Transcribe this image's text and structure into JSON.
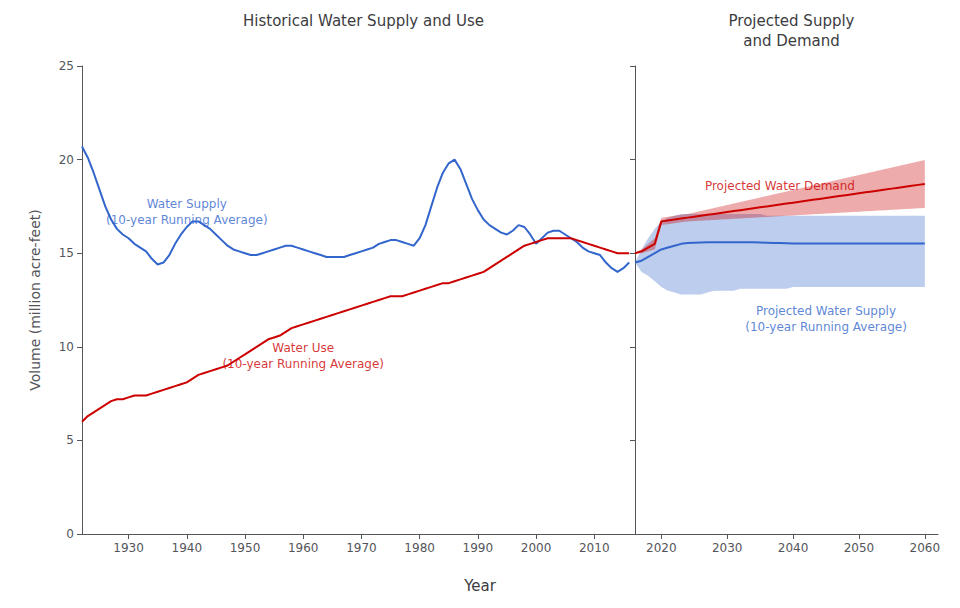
{
  "chart_data": [
    {
      "type": "line",
      "title": "Historical Water Supply and Use",
      "ylabel": "Volume (million acre-feet)",
      "xlabel": "Year",
      "x": [
        1922,
        1923,
        1924,
        1925,
        1926,
        1927,
        1928,
        1929,
        1930,
        1931,
        1932,
        1933,
        1934,
        1935,
        1936,
        1937,
        1938,
        1939,
        1940,
        1941,
        1942,
        1943,
        1944,
        1945,
        1946,
        1947,
        1948,
        1949,
        1950,
        1951,
        1952,
        1953,
        1954,
        1955,
        1956,
        1957,
        1958,
        1959,
        1960,
        1961,
        1962,
        1963,
        1964,
        1965,
        1966,
        1967,
        1968,
        1969,
        1970,
        1971,
        1972,
        1973,
        1974,
        1975,
        1976,
        1977,
        1978,
        1979,
        1980,
        1981,
        1982,
        1983,
        1984,
        1985,
        1986,
        1987,
        1988,
        1989,
        1990,
        1991,
        1992,
        1993,
        1994,
        1995,
        1996,
        1997,
        1998,
        1999,
        2000,
        2001,
        2002,
        2003,
        2004,
        2005,
        2006,
        2007,
        2008,
        2009,
        2010,
        2011,
        2012,
        2013,
        2014,
        2015,
        2016
      ],
      "series": [
        {
          "color": "#3366CC",
          "values": [
            20.7,
            20.1,
            19.3,
            18.4,
            17.5,
            16.8,
            16.3,
            16.0,
            15.8,
            15.5,
            15.3,
            15.1,
            14.7,
            14.4,
            14.5,
            14.9,
            15.5,
            16.0,
            16.4,
            16.7,
            16.7,
            16.5,
            16.3,
            16.0,
            15.7,
            15.4,
            15.2,
            15.1,
            15.0,
            14.9,
            14.9,
            15.0,
            15.1,
            15.2,
            15.3,
            15.4,
            15.4,
            15.3,
            15.2,
            15.1,
            15.0,
            14.9,
            14.8,
            14.8,
            14.8,
            14.8,
            14.9,
            15.0,
            15.1,
            15.2,
            15.3,
            15.5,
            15.6,
            15.7,
            15.7,
            15.6,
            15.5,
            15.4,
            15.8,
            16.5,
            17.5,
            18.5,
            19.3,
            19.8,
            20.0,
            19.5,
            18.7,
            17.9,
            17.3,
            16.8,
            16.5,
            16.3,
            16.1,
            16.0,
            16.2,
            16.5,
            16.4,
            16.0,
            15.5,
            15.8,
            16.1,
            16.2,
            16.2,
            16.0,
            15.8,
            15.6,
            15.3,
            15.1,
            15.0,
            14.9,
            14.5,
            14.2,
            14.0,
            14.2,
            14.5
          ]
        },
        {
          "color": "#CC0000",
          "values": [
            6.0,
            6.3,
            6.5,
            6.7,
            6.9,
            7.1,
            7.2,
            7.2,
            7.3,
            7.4,
            7.4,
            7.4,
            7.5,
            7.6,
            7.7,
            7.8,
            7.9,
            8.0,
            8.1,
            8.3,
            8.5,
            8.6,
            8.7,
            8.8,
            8.9,
            9.0,
            9.2,
            9.4,
            9.6,
            9.8,
            10.0,
            10.2,
            10.4,
            10.5,
            10.6,
            10.8,
            11.0,
            11.1,
            11.2,
            11.3,
            11.4,
            11.5,
            11.6,
            11.7,
            11.8,
            11.9,
            12.0,
            12.1,
            12.2,
            12.3,
            12.4,
            12.5,
            12.6,
            12.7,
            12.7,
            12.7,
            12.8,
            12.9,
            13.0,
            13.1,
            13.2,
            13.3,
            13.4,
            13.4,
            13.5,
            13.6,
            13.7,
            13.8,
            13.9,
            14.0,
            14.2,
            14.4,
            14.6,
            14.8,
            15.0,
            15.2,
            15.4,
            15.5,
            15.6,
            15.7,
            15.8,
            15.8,
            15.8,
            15.8,
            15.8,
            15.7,
            15.6,
            15.5,
            15.4,
            15.3,
            15.2,
            15.1,
            15.0,
            15.0,
            15.0
          ]
        }
      ],
      "annotations": [
        {
          "text": "Water Supply\n(10-year Running Average)",
          "x": 1940,
          "y": 17.2,
          "color": "#3366CC"
        },
        {
          "text": "Water Use\n(10-year Running Average)",
          "x": 1960,
          "y": 9.5,
          "color": "#CC0000"
        }
      ],
      "xlim": [
        1922,
        2017
      ],
      "xticks": [
        1930,
        1940,
        1950,
        1960,
        1970,
        1980,
        1990,
        2000,
        2010
      ],
      "ylim": [
        0,
        25
      ],
      "yticks": [
        0,
        5,
        10,
        15,
        20,
        25
      ],
      "grid": false
    },
    {
      "type": "line",
      "title": "Projected Supply\nand Demand",
      "x": [
        2016,
        2017,
        2018,
        2019,
        2020,
        2021,
        2022,
        2023,
        2024,
        2025,
        2026,
        2027,
        2028,
        2029,
        2030,
        2031,
        2032,
        2033,
        2034,
        2035,
        2036,
        2037,
        2038,
        2039,
        2040,
        2041,
        2042,
        2043,
        2044,
        2045,
        2046,
        2047,
        2048,
        2049,
        2050,
        2051,
        2052,
        2053,
        2054,
        2055,
        2056,
        2057,
        2058,
        2059,
        2060
      ],
      "series": [
        {
          "color": "#3366CC",
          "values": [
            14.5,
            14.6,
            14.8,
            15.0,
            15.2,
            15.3,
            15.4,
            15.5,
            15.55,
            15.56,
            15.57,
            15.58,
            15.59,
            15.59,
            15.59,
            15.59,
            15.59,
            15.59,
            15.58,
            15.57,
            15.56,
            15.55,
            15.54,
            15.53,
            15.52,
            15.52,
            15.52,
            15.52,
            15.52,
            15.52,
            15.52,
            15.52,
            15.52,
            15.52,
            15.52,
            15.52,
            15.52,
            15.52,
            15.52,
            15.52,
            15.52,
            15.52,
            15.52,
            15.52,
            15.52
          ],
          "low": [
            14.5,
            14.0,
            13.8,
            13.5,
            13.2,
            13.0,
            12.9,
            12.8,
            12.8,
            12.8,
            12.8,
            12.9,
            13.0,
            13.0,
            13.0,
            13.0,
            13.1,
            13.1,
            13.1,
            13.1,
            13.1,
            13.1,
            13.1,
            13.1,
            13.2,
            13.2,
            13.2,
            13.2,
            13.2,
            13.2,
            13.2,
            13.2,
            13.2,
            13.2,
            13.2,
            13.2,
            13.2,
            13.2,
            13.2,
            13.2,
            13.2,
            13.2,
            13.2,
            13.2,
            13.2
          ],
          "high": [
            14.5,
            15.2,
            15.8,
            16.3,
            16.7,
            16.9,
            17.0,
            17.1,
            17.1,
            17.1,
            17.1,
            17.1,
            17.1,
            17.1,
            17.1,
            17.1,
            17.1,
            17.1,
            17.1,
            17.1,
            17.0,
            17.0,
            17.0,
            17.0,
            17.0,
            17.0,
            17.0,
            17.0,
            17.0,
            17.0,
            17.0,
            17.0,
            17.0,
            17.0,
            17.0,
            17.0,
            17.0,
            17.0,
            17.0,
            17.0,
            17.0,
            17.0,
            17.0,
            17.0,
            17.0
          ]
        },
        {
          "color": "#CC0000",
          "values": [
            15.0,
            15.1,
            15.3,
            15.5,
            16.7,
            16.75,
            16.8,
            16.85,
            16.9,
            16.95,
            17.0,
            17.05,
            17.1,
            17.15,
            17.2,
            17.25,
            17.3,
            17.35,
            17.4,
            17.45,
            17.5,
            17.55,
            17.6,
            17.65,
            17.7,
            17.75,
            17.8,
            17.85,
            17.9,
            17.95,
            18.0,
            18.05,
            18.1,
            18.15,
            18.2,
            18.25,
            18.3,
            18.35,
            18.4,
            18.45,
            18.5,
            18.55,
            18.6,
            18.65,
            18.7
          ],
          "low": [
            15.0,
            15.0,
            15.1,
            15.2,
            16.5,
            16.55,
            16.6,
            16.65,
            16.7,
            16.72,
            16.74,
            16.76,
            16.78,
            16.8,
            16.82,
            16.84,
            16.86,
            16.88,
            16.9,
            16.92,
            16.94,
            16.96,
            16.98,
            17.0,
            17.02,
            17.04,
            17.06,
            17.08,
            17.1,
            17.12,
            17.14,
            17.16,
            17.18,
            17.2,
            17.22,
            17.24,
            17.26,
            17.28,
            17.3,
            17.32,
            17.34,
            17.36,
            17.38,
            17.4,
            17.42
          ],
          "high": [
            15.0,
            15.2,
            15.5,
            15.8,
            16.9,
            16.95,
            17.0,
            17.05,
            17.1,
            17.18,
            17.26,
            17.34,
            17.42,
            17.5,
            17.58,
            17.66,
            17.74,
            17.82,
            17.9,
            17.98,
            18.06,
            18.14,
            18.22,
            18.3,
            18.38,
            18.46,
            18.54,
            18.62,
            18.7,
            18.78,
            18.86,
            18.94,
            19.02,
            19.1,
            19.18,
            19.26,
            19.34,
            19.42,
            19.5,
            19.58,
            19.66,
            19.74,
            19.82,
            19.9,
            19.98
          ]
        }
      ],
      "annotations": [
        {
          "text": "Projected Water Demand",
          "x": 2038,
          "y": 18.6,
          "color": "#CC0000"
        },
        {
          "text": "Projected Water Supply\n(10-year Running Average)",
          "x": 2045,
          "y": 11.5,
          "color": "#3366CC"
        }
      ],
      "xlim": [
        2016,
        2062
      ],
      "xticks": [
        2020,
        2030,
        2040,
        2050,
        2060
      ],
      "ylim": [
        0,
        25
      ],
      "yticks": [
        0,
        5,
        10,
        15,
        20,
        25
      ],
      "grid": false,
      "tick_labels": "x"
    }
  ]
}
